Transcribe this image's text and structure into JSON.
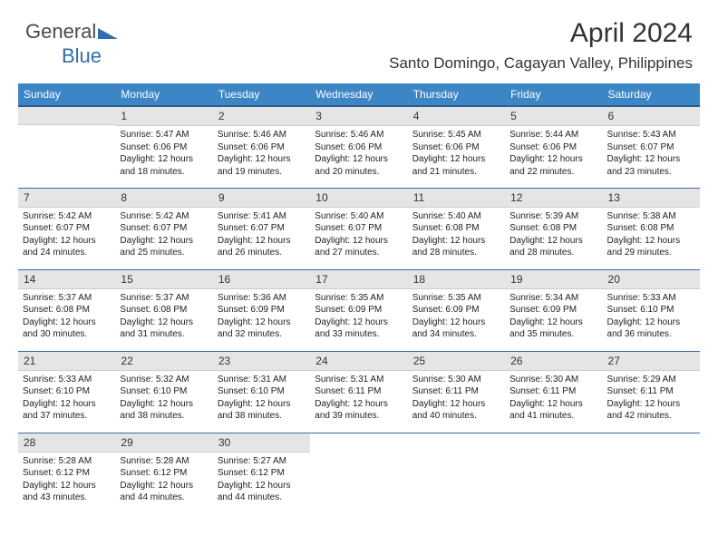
{
  "logo": {
    "text1": "General",
    "text2": "Blue",
    "color1": "#5a5a5a",
    "color2": "#2f6fb0",
    "triangle_color": "#2f6fb0"
  },
  "header": {
    "title": "April 2024",
    "subtitle": "Santo Domingo, Cagayan Valley, Philippines"
  },
  "colors": {
    "header_bg": "#3d86c6",
    "header_text": "#ffffff",
    "header_underline": "#2d5d8f",
    "daynum_bg": "#e5e5e5",
    "row_border": "#3d6aa0",
    "body_text": "#222222"
  },
  "weekdays": [
    "Sunday",
    "Monday",
    "Tuesday",
    "Wednesday",
    "Thursday",
    "Friday",
    "Saturday"
  ],
  "cells": [
    [
      {
        "num": "",
        "empty": true
      },
      {
        "num": "1",
        "sunrise": "Sunrise: 5:47 AM",
        "sunset": "Sunset: 6:06 PM",
        "day1": "Daylight: 12 hours",
        "day2": "and 18 minutes."
      },
      {
        "num": "2",
        "sunrise": "Sunrise: 5:46 AM",
        "sunset": "Sunset: 6:06 PM",
        "day1": "Daylight: 12 hours",
        "day2": "and 19 minutes."
      },
      {
        "num": "3",
        "sunrise": "Sunrise: 5:46 AM",
        "sunset": "Sunset: 6:06 PM",
        "day1": "Daylight: 12 hours",
        "day2": "and 20 minutes."
      },
      {
        "num": "4",
        "sunrise": "Sunrise: 5:45 AM",
        "sunset": "Sunset: 6:06 PM",
        "day1": "Daylight: 12 hours",
        "day2": "and 21 minutes."
      },
      {
        "num": "5",
        "sunrise": "Sunrise: 5:44 AM",
        "sunset": "Sunset: 6:06 PM",
        "day1": "Daylight: 12 hours",
        "day2": "and 22 minutes."
      },
      {
        "num": "6",
        "sunrise": "Sunrise: 5:43 AM",
        "sunset": "Sunset: 6:07 PM",
        "day1": "Daylight: 12 hours",
        "day2": "and 23 minutes."
      }
    ],
    [
      {
        "num": "7",
        "sunrise": "Sunrise: 5:42 AM",
        "sunset": "Sunset: 6:07 PM",
        "day1": "Daylight: 12 hours",
        "day2": "and 24 minutes."
      },
      {
        "num": "8",
        "sunrise": "Sunrise: 5:42 AM",
        "sunset": "Sunset: 6:07 PM",
        "day1": "Daylight: 12 hours",
        "day2": "and 25 minutes."
      },
      {
        "num": "9",
        "sunrise": "Sunrise: 5:41 AM",
        "sunset": "Sunset: 6:07 PM",
        "day1": "Daylight: 12 hours",
        "day2": "and 26 minutes."
      },
      {
        "num": "10",
        "sunrise": "Sunrise: 5:40 AM",
        "sunset": "Sunset: 6:07 PM",
        "day1": "Daylight: 12 hours",
        "day2": "and 27 minutes."
      },
      {
        "num": "11",
        "sunrise": "Sunrise: 5:40 AM",
        "sunset": "Sunset: 6:08 PM",
        "day1": "Daylight: 12 hours",
        "day2": "and 28 minutes."
      },
      {
        "num": "12",
        "sunrise": "Sunrise: 5:39 AM",
        "sunset": "Sunset: 6:08 PM",
        "day1": "Daylight: 12 hours",
        "day2": "and 28 minutes."
      },
      {
        "num": "13",
        "sunrise": "Sunrise: 5:38 AM",
        "sunset": "Sunset: 6:08 PM",
        "day1": "Daylight: 12 hours",
        "day2": "and 29 minutes."
      }
    ],
    [
      {
        "num": "14",
        "sunrise": "Sunrise: 5:37 AM",
        "sunset": "Sunset: 6:08 PM",
        "day1": "Daylight: 12 hours",
        "day2": "and 30 minutes."
      },
      {
        "num": "15",
        "sunrise": "Sunrise: 5:37 AM",
        "sunset": "Sunset: 6:08 PM",
        "day1": "Daylight: 12 hours",
        "day2": "and 31 minutes."
      },
      {
        "num": "16",
        "sunrise": "Sunrise: 5:36 AM",
        "sunset": "Sunset: 6:09 PM",
        "day1": "Daylight: 12 hours",
        "day2": "and 32 minutes."
      },
      {
        "num": "17",
        "sunrise": "Sunrise: 5:35 AM",
        "sunset": "Sunset: 6:09 PM",
        "day1": "Daylight: 12 hours",
        "day2": "and 33 minutes."
      },
      {
        "num": "18",
        "sunrise": "Sunrise: 5:35 AM",
        "sunset": "Sunset: 6:09 PM",
        "day1": "Daylight: 12 hours",
        "day2": "and 34 minutes."
      },
      {
        "num": "19",
        "sunrise": "Sunrise: 5:34 AM",
        "sunset": "Sunset: 6:09 PM",
        "day1": "Daylight: 12 hours",
        "day2": "and 35 minutes."
      },
      {
        "num": "20",
        "sunrise": "Sunrise: 5:33 AM",
        "sunset": "Sunset: 6:10 PM",
        "day1": "Daylight: 12 hours",
        "day2": "and 36 minutes."
      }
    ],
    [
      {
        "num": "21",
        "sunrise": "Sunrise: 5:33 AM",
        "sunset": "Sunset: 6:10 PM",
        "day1": "Daylight: 12 hours",
        "day2": "and 37 minutes."
      },
      {
        "num": "22",
        "sunrise": "Sunrise: 5:32 AM",
        "sunset": "Sunset: 6:10 PM",
        "day1": "Daylight: 12 hours",
        "day2": "and 38 minutes."
      },
      {
        "num": "23",
        "sunrise": "Sunrise: 5:31 AM",
        "sunset": "Sunset: 6:10 PM",
        "day1": "Daylight: 12 hours",
        "day2": "and 38 minutes."
      },
      {
        "num": "24",
        "sunrise": "Sunrise: 5:31 AM",
        "sunset": "Sunset: 6:11 PM",
        "day1": "Daylight: 12 hours",
        "day2": "and 39 minutes."
      },
      {
        "num": "25",
        "sunrise": "Sunrise: 5:30 AM",
        "sunset": "Sunset: 6:11 PM",
        "day1": "Daylight: 12 hours",
        "day2": "and 40 minutes."
      },
      {
        "num": "26",
        "sunrise": "Sunrise: 5:30 AM",
        "sunset": "Sunset: 6:11 PM",
        "day1": "Daylight: 12 hours",
        "day2": "and 41 minutes."
      },
      {
        "num": "27",
        "sunrise": "Sunrise: 5:29 AM",
        "sunset": "Sunset: 6:11 PM",
        "day1": "Daylight: 12 hours",
        "day2": "and 42 minutes."
      }
    ],
    [
      {
        "num": "28",
        "sunrise": "Sunrise: 5:28 AM",
        "sunset": "Sunset: 6:12 PM",
        "day1": "Daylight: 12 hours",
        "day2": "and 43 minutes."
      },
      {
        "num": "29",
        "sunrise": "Sunrise: 5:28 AM",
        "sunset": "Sunset: 6:12 PM",
        "day1": "Daylight: 12 hours",
        "day2": "and 44 minutes."
      },
      {
        "num": "30",
        "sunrise": "Sunrise: 5:27 AM",
        "sunset": "Sunset: 6:12 PM",
        "day1": "Daylight: 12 hours",
        "day2": "and 44 minutes."
      },
      {
        "num": "",
        "empty": true,
        "noBg": true
      },
      {
        "num": "",
        "empty": true,
        "noBg": true
      },
      {
        "num": "",
        "empty": true,
        "noBg": true
      },
      {
        "num": "",
        "empty": true,
        "noBg": true
      }
    ]
  ]
}
